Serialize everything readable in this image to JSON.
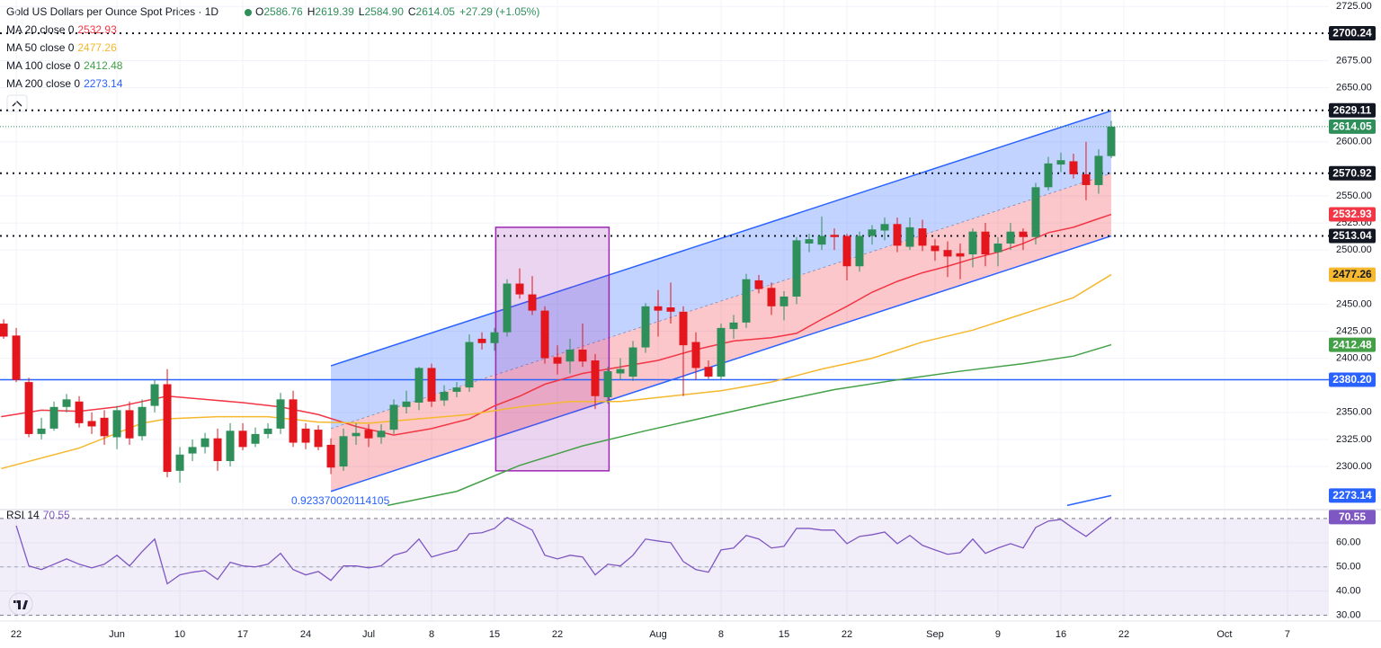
{
  "chart_data": [
    {
      "type": "candlestick",
      "title": "Gold US Dollars per Ounce Spot Prices · 1D",
      "ohlc_legend": {
        "labels": [
          "O",
          "H",
          "L",
          "C"
        ],
        "values": [
          "2586.76",
          "2619.39",
          "2584.90",
          "2614.05"
        ],
        "change": "+27.29 (+1.05%)"
      },
      "candles": {
        "up_color": "#2f8f5b",
        "down_color": "#e3161e",
        "x": [
          -1,
          0,
          1,
          2,
          3,
          4,
          5,
          6,
          7,
          8,
          9,
          10,
          11,
          12,
          13,
          14,
          15,
          16,
          17,
          18,
          19,
          20,
          21,
          22,
          23,
          24,
          25,
          26,
          27,
          28,
          29,
          30,
          31,
          32,
          33,
          34,
          35,
          36,
          37,
          38,
          39,
          40,
          41,
          42,
          43,
          44,
          45,
          46,
          47,
          48,
          49,
          50,
          51,
          52,
          53,
          54,
          55,
          56,
          57,
          58,
          59,
          60,
          61,
          62,
          63,
          64,
          65,
          66,
          67,
          68,
          69,
          70,
          71,
          72,
          73,
          74,
          75,
          76,
          77,
          78,
          79,
          80,
          81,
          82,
          83,
          84,
          85,
          86,
          87
        ],
        "open": [
          2432,
          2421,
          2378,
          2330,
          2335,
          2355,
          2360,
          2342,
          2345,
          2327,
          2352,
          2328,
          2356,
          2376,
          2296,
          2312,
          2318,
          2326,
          2305,
          2333,
          2321,
          2330,
          2335,
          2362,
          2335,
          2334,
          2320,
          2300,
          2328,
          2334,
          2327,
          2334,
          2355,
          2359,
          2391,
          2361,
          2369,
          2373,
          2418,
          2414,
          2424,
          2469,
          2459,
          2444,
          2401,
          2397,
          2408,
          2398,
          2364,
          2386,
          2383,
          2410,
          2448,
          2447,
          2443,
          2415,
          2392,
          2383,
          2427,
          2433,
          2472,
          2465,
          2448,
          2457,
          2506,
          2505,
          2514,
          2513,
          2485,
          2513,
          2518,
          2524,
          2503,
          2520,
          2504,
          2500,
          2497,
          2496,
          2517,
          2498,
          2506,
          2517,
          2512,
          2558,
          2579,
          2582,
          2570,
          2560,
          2586.76
        ],
        "high": [
          2436,
          2428,
          2382,
          2345,
          2360,
          2367,
          2365,
          2350,
          2352,
          2356,
          2360,
          2362,
          2380,
          2390,
          2318,
          2325,
          2331,
          2335,
          2340,
          2340,
          2336,
          2340,
          2368,
          2370,
          2340,
          2338,
          2326,
          2335,
          2340,
          2339,
          2339,
          2362,
          2370,
          2392,
          2395,
          2375,
          2378,
          2422,
          2424,
          2428,
          2473,
          2483,
          2476,
          2448,
          2412,
          2418,
          2432,
          2404,
          2392,
          2400,
          2416,
          2451,
          2463,
          2470,
          2448,
          2424,
          2398,
          2432,
          2440,
          2478,
          2477,
          2470,
          2462,
          2512,
          2515,
          2531,
          2520,
          2515,
          2517,
          2523,
          2530,
          2530,
          2530,
          2528,
          2510,
          2508,
          2506,
          2520,
          2525,
          2512,
          2525,
          2520,
          2562,
          2586,
          2590,
          2589,
          2600,
          2593,
          2619.39
        ],
        "low": [
          2418,
          2378,
          2327,
          2325,
          2333,
          2350,
          2336,
          2330,
          2320,
          2316,
          2320,
          2324,
          2350,
          2290,
          2285,
          2305,
          2312,
          2296,
          2300,
          2315,
          2318,
          2326,
          2330,
          2318,
          2316,
          2315,
          2293,
          2296,
          2320,
          2318,
          2321,
          2330,
          2349,
          2352,
          2355,
          2356,
          2364,
          2369,
          2408,
          2407,
          2420,
          2455,
          2440,
          2395,
          2385,
          2386,
          2392,
          2353,
          2358,
          2380,
          2379,
          2405,
          2420,
          2432,
          2365,
          2380,
          2381,
          2380,
          2418,
          2428,
          2460,
          2440,
          2435,
          2450,
          2498,
          2500,
          2500,
          2472,
          2480,
          2505,
          2509,
          2498,
          2500,
          2499,
          2490,
          2475,
          2473,
          2484,
          2485,
          2485,
          2500,
          2500,
          2505,
          2555,
          2572,
          2566,
          2546,
          2552,
          2584.9
        ],
        "close": [
          2420,
          2380,
          2330,
          2335,
          2355,
          2362,
          2340,
          2337,
          2328,
          2352,
          2326,
          2355,
          2376,
          2295,
          2311,
          2318,
          2326,
          2305,
          2333,
          2318,
          2330,
          2335,
          2362,
          2322,
          2322,
          2318,
          2299,
          2328,
          2331,
          2326,
          2333,
          2357,
          2360,
          2391,
          2360,
          2369,
          2373,
          2415,
          2414,
          2424,
          2469,
          2459,
          2444,
          2400,
          2395,
          2408,
          2397,
          2365,
          2388,
          2390,
          2410,
          2448,
          2444,
          2443,
          2412,
          2391,
          2383,
          2428,
          2433,
          2473,
          2464,
          2448,
          2457,
          2509,
          2510,
          2513,
          2512,
          2485,
          2513,
          2519,
          2524,
          2504,
          2521,
          2504,
          2499,
          2494,
          2494,
          2517,
          2496,
          2506,
          2517,
          2512,
          2558,
          2580,
          2583,
          2570,
          2560,
          2587,
          2614.05
        ]
      },
      "series": [
        {
          "name": "MA 20 close 0",
          "color": "#f23645",
          "x": [
            -1.2,
            2,
            5,
            8,
            12,
            15,
            18,
            21,
            24,
            27,
            30,
            33,
            36,
            38,
            40,
            42,
            45,
            48,
            51,
            54,
            57,
            60,
            62,
            64,
            66,
            68,
            70,
            72,
            74,
            76,
            78,
            80,
            82,
            84,
            86,
            87
          ],
          "values": [
            2346,
            2352,
            2351,
            2355,
            2365,
            2362,
            2359,
            2355,
            2348,
            2337,
            2329,
            2335,
            2344,
            2356,
            2365,
            2376,
            2386,
            2392,
            2398,
            2408,
            2416,
            2419,
            2423,
            2436,
            2448,
            2461,
            2471,
            2479,
            2485,
            2492,
            2498,
            2506,
            2516,
            2521,
            2529,
            2532.93
          ]
        },
        {
          "name": "MA 50 close 0",
          "color": "#f5b82e",
          "x": [
            -1.2,
            5,
            10,
            12,
            16,
            20,
            24,
            28,
            32,
            36,
            40,
            44,
            48,
            52,
            56,
            60,
            64,
            68,
            72,
            76,
            80,
            84,
            87
          ],
          "values": [
            2298,
            2317,
            2340,
            2344,
            2346,
            2346,
            2341,
            2340,
            2344,
            2348,
            2355,
            2360,
            2360,
            2365,
            2370,
            2378,
            2390,
            2400,
            2415,
            2426,
            2441,
            2456,
            2477.26
          ]
        },
        {
          "name": "MA 100 close 0",
          "color": "#43a047",
          "x": [
            29.5,
            35,
            40,
            45,
            50,
            55,
            60,
            65,
            70,
            75,
            80,
            84,
            87
          ],
          "values": [
            2264,
            2277,
            2301,
            2319,
            2333,
            2346,
            2359,
            2371,
            2380,
            2388,
            2395,
            2402,
            2412.48
          ]
        },
        {
          "name": "MA 200 close 0",
          "color": "#2962ff",
          "x": [
            83.5,
            87
          ],
          "values": [
            2264,
            2273.14
          ]
        }
      ],
      "levels": {
        "values": [
          2700.24,
          2629.11,
          2570.92,
          2513.04,
          2380.2
        ],
        "value_labels": [
          "2700.24",
          "2629.11",
          "2570.92",
          "2513.04",
          "2380.20"
        ],
        "colors": [
          "#131722",
          "#131722",
          "#131722",
          "#131722",
          "#2962ff"
        ],
        "styles": [
          "dotted",
          "dotted",
          "dotted",
          "dotted",
          "solid"
        ]
      },
      "channel": {
        "x": [
          25,
          87
        ],
        "upper": [
          2393,
          2628.6
        ],
        "middle": [
          2335,
          2570.8
        ],
        "lower": [
          2277,
          2513
        ],
        "color": "#2962ff",
        "label": "0.923370020114105"
      },
      "box": {
        "x": [
          38.1,
          47.1
        ],
        "y": [
          2296,
          2521
        ],
        "color": "#9c27b0"
      },
      "xlim": [
        -1.29,
        104.29
      ],
      "ylim": [
        2261,
        2731
      ],
      "yticks": [
        {
          "value": 2725,
          "label": "2725.00"
        },
        {
          "value": 2675,
          "label": "2675.00"
        },
        {
          "value": 2650,
          "label": "2650.00"
        },
        {
          "value": 2600,
          "label": "2600.00"
        },
        {
          "value": 2550,
          "label": "2550.00"
        },
        {
          "value": 2525,
          "label": "2525.00"
        },
        {
          "value": 2500,
          "label": "2500.00"
        },
        {
          "value": 2450,
          "label": "2450.00"
        },
        {
          "value": 2425,
          "label": "2425.00"
        },
        {
          "value": 2400,
          "label": "2400.00"
        },
        {
          "value": 2350,
          "label": "2350.00"
        },
        {
          "value": 2325,
          "label": "2325.00"
        },
        {
          "value": 2300,
          "label": "2300.00"
        }
      ],
      "grid": true
    },
    {
      "type": "line",
      "series": [
        {
          "name": "RSI 14",
          "color": "#7e57c2",
          "x": [
            0,
            1,
            2,
            3,
            4,
            5,
            6,
            7,
            8,
            9,
            10,
            11,
            12,
            13,
            14,
            15,
            16,
            17,
            18,
            19,
            20,
            21,
            22,
            23,
            24,
            25,
            26,
            27,
            28,
            29,
            30,
            31,
            32,
            33,
            34,
            35,
            36,
            37,
            38,
            39,
            40,
            41,
            42,
            43,
            44,
            45,
            46,
            47,
            48,
            49,
            50,
            51,
            52,
            53,
            54,
            55,
            56,
            57,
            58,
            59,
            60,
            61,
            62,
            63,
            64,
            65,
            66,
            67,
            68,
            69,
            70,
            71,
            72,
            73,
            74,
            75,
            76,
            77,
            78,
            79,
            80,
            81,
            82,
            83,
            84,
            85,
            86,
            87
          ],
          "values": [
            67.0,
            50.4,
            48.9,
            51.1,
            53.3,
            51.1,
            49.6,
            51.1,
            54.8,
            50.4,
            56.3,
            61.5,
            43.0,
            46.7,
            47.8,
            48.5,
            44.8,
            51.9,
            50.4,
            50.0,
            51.1,
            55.6,
            48.9,
            46.7,
            48.1,
            44.4,
            50.4,
            50.4,
            49.6,
            50.4,
            54.8,
            56.3,
            61.5,
            54.1,
            55.6,
            57.0,
            63.7,
            64.1,
            65.9,
            70.4,
            67.8,
            65.2,
            54.8,
            53.3,
            54.8,
            54.1,
            46.7,
            51.1,
            50.4,
            54.8,
            61.5,
            60.7,
            60.0,
            52.2,
            48.9,
            47.8,
            57.0,
            57.8,
            63.0,
            61.5,
            57.8,
            58.5,
            65.9,
            65.9,
            65.2,
            65.2,
            59.6,
            62.6,
            63.3,
            64.4,
            59.6,
            63.0,
            58.9,
            57.0,
            55.2,
            55.9,
            61.5,
            55.6,
            57.8,
            59.6,
            57.8,
            66.3,
            68.9,
            69.6,
            65.9,
            62.6,
            66.7,
            70.55
          ]
        }
      ],
      "bands": [
        30,
        70
      ],
      "mid": 50,
      "xlim": [
        -1.29,
        104.29
      ],
      "ylim": [
        28,
        73.3
      ],
      "yticks": [
        {
          "value": 60,
          "label": "60.00"
        },
        {
          "value": 50,
          "label": "50.00"
        },
        {
          "value": 40,
          "label": "40.00"
        },
        {
          "value": 30,
          "label": "30.00"
        }
      ],
      "xticks": [
        {
          "value": 0,
          "label": "22"
        },
        {
          "value": 8,
          "label": "Jun"
        },
        {
          "value": 13,
          "label": "10"
        },
        {
          "value": 18,
          "label": "17"
        },
        {
          "value": 23,
          "label": "24"
        },
        {
          "value": 28,
          "label": "Jul"
        },
        {
          "value": 33,
          "label": "8"
        },
        {
          "value": 38,
          "label": "15"
        },
        {
          "value": 43,
          "label": "22"
        },
        {
          "value": 51,
          "label": "Aug"
        },
        {
          "value": 56,
          "label": "8"
        },
        {
          "value": 61,
          "label": "15"
        },
        {
          "value": 66,
          "label": "22"
        },
        {
          "value": 73,
          "label": "Sep"
        },
        {
          "value": 78,
          "label": "9"
        },
        {
          "value": 83,
          "label": "16"
        },
        {
          "value": 88,
          "label": "22"
        },
        {
          "value": 96,
          "label": "Oct"
        },
        {
          "value": 101,
          "label": "7"
        }
      ],
      "grid": true
    }
  ]
}
